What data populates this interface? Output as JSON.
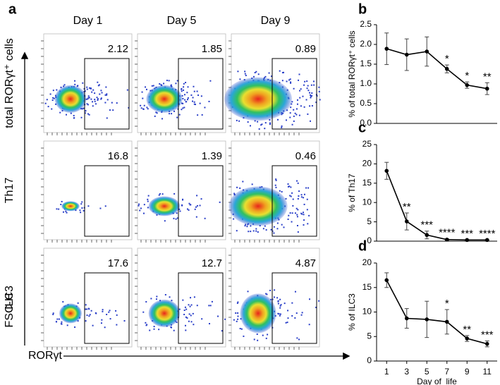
{
  "panel_labels": [
    "a",
    "b",
    "c",
    "d"
  ],
  "flow": {
    "columns": [
      "Day 1",
      "Day 5",
      "Day 9"
    ],
    "rows": [
      "total RORγt⁺ cells",
      "Th17",
      "ILC3"
    ],
    "y_label": "FSC-H",
    "x_label": "RORγt",
    "gate_values": [
      [
        2.12,
        1.85,
        0.89
      ],
      [
        16.8,
        1.39,
        0.46
      ],
      [
        17.6,
        12.7,
        4.87
      ]
    ]
  },
  "chart_data": [
    {
      "type": "line",
      "y_label": "% of total RORγt⁺ cells",
      "x": [
        1,
        3,
        5,
        7,
        9,
        11
      ],
      "values": [
        1.89,
        1.74,
        1.82,
        1.38,
        0.97,
        0.88
      ],
      "errors": [
        0.4,
        0.4,
        0.37,
        0.1,
        0.08,
        0.15
      ],
      "significance": [
        "*",
        "*",
        "**"
      ],
      "significance_x": [
        7,
        9,
        11
      ],
      "xlim": [
        0,
        12
      ],
      "ylim": [
        0,
        2.5
      ],
      "yticks": [
        {
          "value": 0,
          "label": "0.0"
        },
        0.5,
        {
          "value": 1,
          "label": "1.0"
        },
        1.5,
        {
          "value": 2,
          "label": "2.0"
        },
        2.5
      ],
      "color": "#000000"
    },
    {
      "type": "line",
      "y_label": "% of Th17",
      "x": [
        1,
        3,
        5,
        7,
        9,
        11
      ],
      "values": [
        18.2,
        5.1,
        1.6,
        0.4,
        0.3,
        0.3
      ],
      "errors": [
        2.2,
        2.2,
        1.0,
        0.2,
        0.1,
        0.1
      ],
      "significance": [
        "**",
        "***",
        "****",
        "***",
        "****"
      ],
      "significance_x": [
        3,
        5,
        7,
        9,
        11
      ],
      "xlim": [
        0,
        12
      ],
      "ylim": [
        0,
        25
      ],
      "yticks": [
        0,
        5,
        10,
        15,
        20,
        25
      ],
      "color": "#000000"
    },
    {
      "type": "line",
      "y_label": "% of ILC3",
      "x": [
        1,
        3,
        5,
        7,
        9,
        11
      ],
      "values": [
        16.5,
        8.7,
        8.5,
        8.0,
        4.6,
        3.5
      ],
      "errors": [
        1.5,
        2.0,
        3.7,
        2.5,
        0.6,
        0.6
      ],
      "significance": [
        "*",
        "**",
        "***"
      ],
      "significance_x": [
        7,
        9,
        11
      ],
      "xlim": [
        0,
        12
      ],
      "ylim": [
        0,
        20
      ],
      "yticks": [
        0,
        5,
        10,
        15,
        20
      ],
      "xticks": [
        1,
        3,
        5,
        7,
        9,
        11
      ],
      "x_label": "Day of  life",
      "color": "#000000"
    }
  ]
}
